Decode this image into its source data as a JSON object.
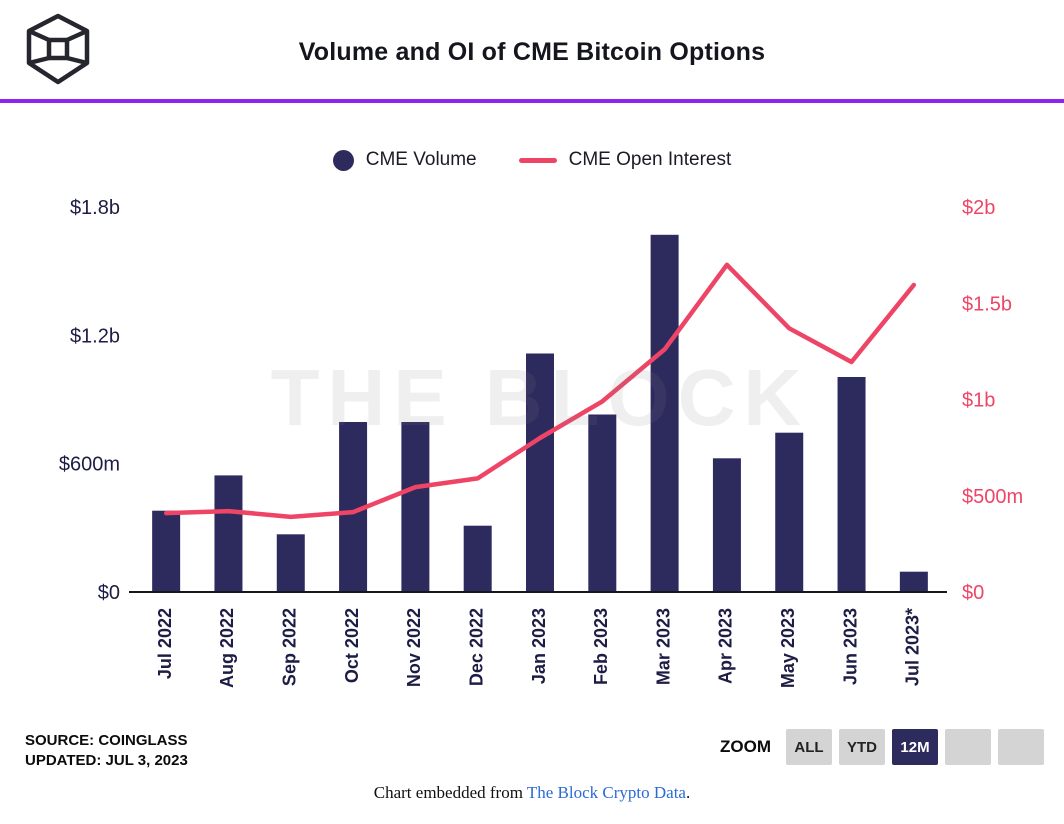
{
  "header": {
    "title": "Volume and OI of CME Bitcoin Options",
    "accent_color": "#8c25f2"
  },
  "legend": [
    {
      "label": "CME Volume",
      "type": "circle",
      "color": "#2d2a5e"
    },
    {
      "label": "CME Open Interest",
      "type": "line",
      "color": "#ee4567"
    }
  ],
  "watermark": "THE BLOCK",
  "chart_data": {
    "type": "bar+line",
    "title": "Volume and OI of CME Bitcoin Options",
    "units": "USD millions",
    "grid": false,
    "legend_position": "top-center",
    "categories": [
      "Jul 2022",
      "Aug 2022",
      "Sep 2022",
      "Oct 2022",
      "Nov 2022",
      "Dec 2022",
      "Jan 2023",
      "Feb 2023",
      "Mar 2023",
      "Apr 2023",
      "May 2023",
      "Jun 2023",
      "Jul 2023*"
    ],
    "series": [
      {
        "name": "CME Volume",
        "type": "bar",
        "axis": "left",
        "color": "#2d2a5e",
        "values": [
          380,
          545,
          270,
          795,
          795,
          310,
          1115,
          830,
          1670,
          625,
          745,
          1005,
          95
        ]
      },
      {
        "name": "CME Open Interest",
        "type": "line",
        "axis": "right",
        "color": "#ee4567",
        "values": [
          410,
          420,
          390,
          415,
          545,
          590,
          800,
          990,
          1260,
          1700,
          1370,
          1195,
          1595
        ]
      }
    ],
    "left_axis": {
      "max": 1800,
      "ticks": [
        {
          "label": "$1.8b",
          "value": 1800
        },
        {
          "label": "$1.2b",
          "value": 1200
        },
        {
          "label": "$600m",
          "value": 600
        },
        {
          "label": "$0",
          "value": 0
        }
      ]
    },
    "right_axis": {
      "max": 2000,
      "ticks": [
        {
          "label": "$2b",
          "value": 2000
        },
        {
          "label": "$1.5b",
          "value": 1500
        },
        {
          "label": "$1b",
          "value": 1000
        },
        {
          "label": "$500m",
          "value": 500
        },
        {
          "label": "$0",
          "value": 0
        }
      ]
    }
  },
  "footer": {
    "source_line1": "SOURCE: COINGLASS",
    "source_line2": "UPDATED: JUL 3, 2023",
    "zoom": {
      "label": "ZOOM",
      "buttons": [
        {
          "label": "ALL",
          "active": false
        },
        {
          "label": "YTD",
          "active": false
        },
        {
          "label": "12M",
          "active": true
        },
        {
          "label": "",
          "active": false
        },
        {
          "label": "",
          "active": false
        }
      ]
    }
  },
  "caption": {
    "prefix": "Chart embedded from ",
    "link": "The Block Crypto Data",
    "suffix": "."
  }
}
